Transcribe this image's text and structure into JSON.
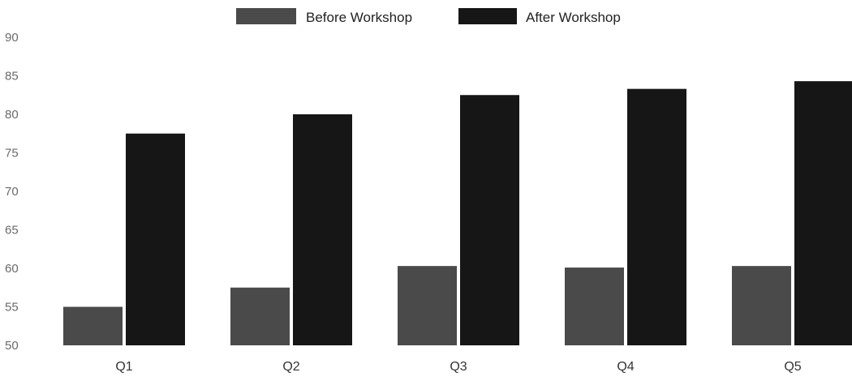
{
  "chart_data": {
    "type": "bar",
    "title": "",
    "xlabel": "",
    "ylabel": "",
    "categories": [
      "Q1",
      "Q2",
      "Q3",
      "Q4",
      "Q5"
    ],
    "series": [
      {
        "name": "Before Workshop",
        "values": [
          55,
          57.5,
          60.3,
          60.1,
          60.3
        ]
      },
      {
        "name": "After Workshop",
        "values": [
          77.5,
          80,
          82.5,
          83.3,
          84.3
        ]
      }
    ],
    "ylim": [
      50,
      90
    ],
    "yticks": [
      "50",
      "55",
      "60",
      "65",
      "70",
      "75",
      "80",
      "85",
      "90"
    ],
    "grid": false,
    "legend_position": "top"
  },
  "colors": {
    "before": "#4a4a4a",
    "after": "#161616",
    "tick_text": "#6a6a6a"
  }
}
